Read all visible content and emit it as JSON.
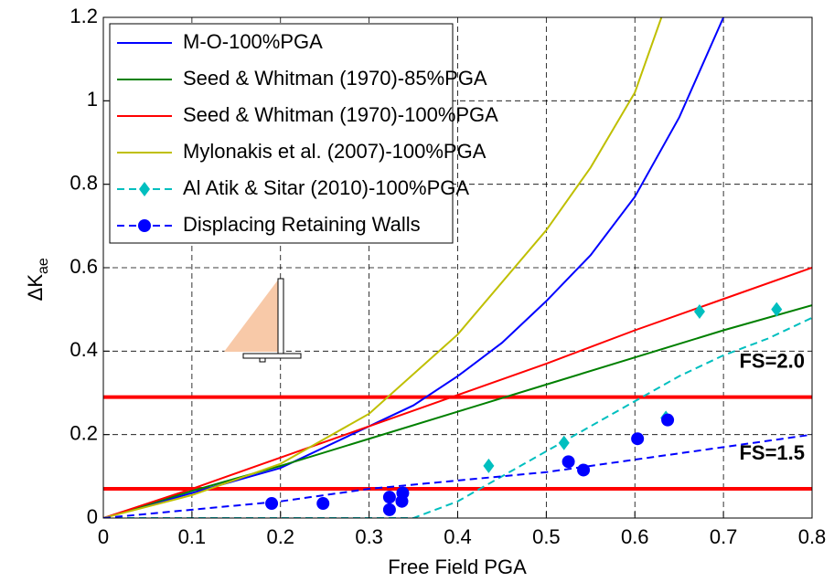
{
  "chart_data": {
    "type": "line",
    "xlabel": "Free Field PGA",
    "ylabel": "ΔK",
    "ylabel_sub": "ae",
    "xlim": [
      0,
      0.8
    ],
    "ylim": [
      0,
      1.2
    ],
    "xticks": [
      0,
      0.1,
      0.2,
      0.3,
      0.4,
      0.5,
      0.6,
      0.7,
      0.8
    ],
    "yticks": [
      0,
      0.2,
      0.4,
      0.6,
      0.8,
      1,
      1.2
    ],
    "grid": true,
    "legend": "upper-left",
    "series": [
      {
        "name": "M-O-100%PGA",
        "color": "#0000ff",
        "dash": false,
        "x": [
          0,
          0.1,
          0.2,
          0.3,
          0.35,
          0.4,
          0.45,
          0.5,
          0.55,
          0.6,
          0.65,
          0.7
        ],
        "values": [
          0,
          0.06,
          0.12,
          0.22,
          0.27,
          0.34,
          0.42,
          0.52,
          0.63,
          0.77,
          0.96,
          1.2
        ]
      },
      {
        "name": "Seed & Whitman (1970)-85%PGA",
        "color": "#008000",
        "dash": false,
        "x": [
          0,
          0.1,
          0.2,
          0.3,
          0.4,
          0.5,
          0.6,
          0.7,
          0.8
        ],
        "values": [
          0,
          0.065,
          0.125,
          0.19,
          0.255,
          0.32,
          0.385,
          0.45,
          0.51
        ]
      },
      {
        "name": "Seed & Whitman (1970)-100%PGA",
        "color": "#ff0000",
        "dash": false,
        "x": [
          0,
          0.1,
          0.2,
          0.3,
          0.4,
          0.5,
          0.6,
          0.7,
          0.8
        ],
        "values": [
          0,
          0.07,
          0.145,
          0.22,
          0.295,
          0.37,
          0.45,
          0.525,
          0.6
        ]
      },
      {
        "name": "Mylonakis et al. (2007)-100%PGA",
        "color": "#bfbf00",
        "dash": false,
        "x": [
          0,
          0.1,
          0.2,
          0.3,
          0.4,
          0.5,
          0.55,
          0.6,
          0.63
        ],
        "values": [
          0,
          0.055,
          0.13,
          0.25,
          0.44,
          0.69,
          0.84,
          1.02,
          1.2
        ]
      },
      {
        "name": "Al Atik & Sitar (2010)-100%PGA",
        "color": "#00bfbf",
        "dash": true,
        "marker": "diamond",
        "x": [
          0,
          0.35,
          0.4,
          0.45,
          0.5,
          0.55,
          0.6,
          0.65,
          0.7,
          0.75,
          0.8
        ],
        "values": [
          0,
          0,
          0.04,
          0.1,
          0.16,
          0.22,
          0.28,
          0.34,
          0.39,
          0.43,
          0.48
        ],
        "points_x": [
          0.435,
          0.52,
          0.635,
          0.673,
          0.76
        ],
        "points_y": [
          0.125,
          0.18,
          0.24,
          0.495,
          0.5
        ]
      },
      {
        "name": "Displacing Retaining Walls",
        "color": "#0000ff",
        "dash": true,
        "marker": "circle",
        "x": [
          0,
          0.1,
          0.2,
          0.3,
          0.4,
          0.5,
          0.6,
          0.7,
          0.8
        ],
        "values": [
          0,
          0.02,
          0.04,
          0.07,
          0.09,
          0.11,
          0.14,
          0.17,
          0.2
        ],
        "points_x": [
          0.19,
          0.248,
          0.323,
          0.323,
          0.337,
          0.338,
          0.525,
          0.542,
          0.603,
          0.637
        ],
        "points_y": [
          0.035,
          0.035,
          0.05,
          0.02,
          0.04,
          0.06,
          0.135,
          0.115,
          0.19,
          0.235
        ]
      }
    ],
    "hlines": [
      {
        "value": 0.29,
        "label": "FS=2.0",
        "color": "#ff0000"
      },
      {
        "value": 0.07,
        "label": "FS=1.5",
        "color": "#ff0000"
      }
    ]
  }
}
